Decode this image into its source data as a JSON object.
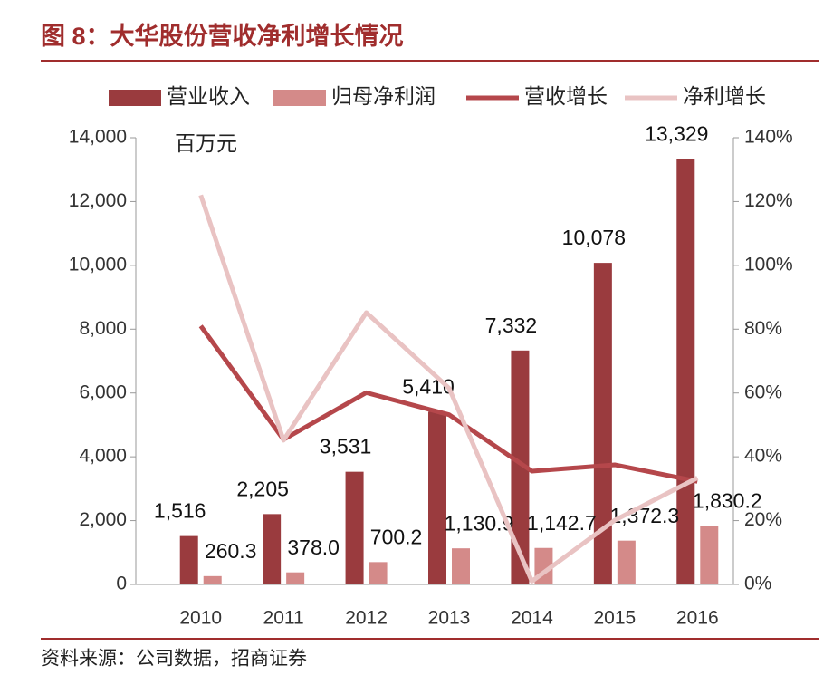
{
  "chart_data": {
    "type": "bar",
    "title": "图 8：大华股份营收净利增长情况",
    "unit_label": "百万元",
    "source": "资料来源：公司数据，招商证券",
    "categories": [
      "2010",
      "2011",
      "2012",
      "2013",
      "2014",
      "2015",
      "2016"
    ],
    "series": [
      {
        "name": "营业收入",
        "type": "bar",
        "color": "#9a3b3e",
        "values": [
          1516,
          2205,
          3531,
          5410,
          7332,
          10078,
          13329
        ],
        "value_labels": [
          "1,516",
          "2,205",
          "3,531",
          "5,410",
          "7,332",
          "10,078",
          "13,329"
        ]
      },
      {
        "name": "归母净利润",
        "type": "bar",
        "color": "#d48a89",
        "values": [
          260.3,
          378.0,
          700.2,
          1130.9,
          1142.7,
          1372.3,
          1830.2
        ],
        "value_labels": [
          "260.3",
          "378.0",
          "700.2",
          "1,130.9",
          "1,142.7",
          "1,372.3",
          "1,830.2"
        ]
      },
      {
        "name": "营收增长",
        "type": "line",
        "axis": "y2",
        "color": "#b5474b",
        "values": [
          81,
          45.4,
          60.1,
          53.2,
          35.5,
          37.5,
          32.3
        ]
      },
      {
        "name": "净利增长",
        "type": "line",
        "axis": "y2",
        "color": "#e9c3c3",
        "values": [
          122,
          45.2,
          85.2,
          61.5,
          1.0,
          20.1,
          33.4
        ]
      }
    ],
    "ylim": [
      0,
      14000
    ],
    "yticks": [
      0,
      {
        "value": 2000,
        "label": "2,000"
      },
      {
        "value": 4000,
        "label": "4,000"
      },
      {
        "value": 6000,
        "label": "6,000"
      },
      {
        "value": 8000,
        "label": "8,000"
      },
      {
        "value": 10000,
        "label": "10,000"
      },
      {
        "value": 12000,
        "label": "12,000"
      },
      {
        "value": 14000,
        "label": "14,000"
      }
    ],
    "y2lim": [
      0,
      140
    ],
    "y2ticks": [
      {
        "value": 0,
        "label": "0%"
      },
      {
        "value": 20,
        "label": "20%"
      },
      {
        "value": 40,
        "label": "40%"
      },
      {
        "value": 60,
        "label": "60%"
      },
      {
        "value": 80,
        "label": "80%"
      },
      {
        "value": 100,
        "label": "100%"
      },
      {
        "value": 120,
        "label": "120%"
      },
      {
        "value": 140,
        "label": "140%"
      }
    ],
    "grid": false,
    "legend": "top"
  }
}
